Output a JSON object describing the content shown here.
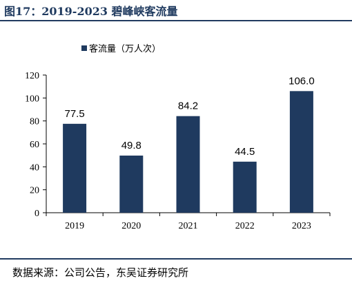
{
  "page": {
    "title": "图17：2019-2023 碧峰峡客流量",
    "source": "数据来源：公司公告，东吴证券研究所"
  },
  "colors": {
    "bar": "#1f3a5f",
    "rule": "#1f3a5f",
    "axis": "#000000"
  },
  "chart_data": {
    "type": "bar",
    "categories": [
      "2019",
      "2020",
      "2021",
      "2022",
      "2023"
    ],
    "series": [
      {
        "name": "客流量（万人次）",
        "values": [
          77.5,
          49.8,
          84.2,
          44.5,
          106.0
        ]
      }
    ],
    "data_labels": [
      "77.5",
      "49.8",
      "84.2",
      "44.5",
      "106.0"
    ],
    "ylim": [
      0,
      120
    ],
    "yticks": [
      0,
      20,
      40,
      60,
      80,
      100,
      120
    ],
    "xlabel": "",
    "ylabel": "",
    "legend_position": "top-left",
    "grid": false
  }
}
